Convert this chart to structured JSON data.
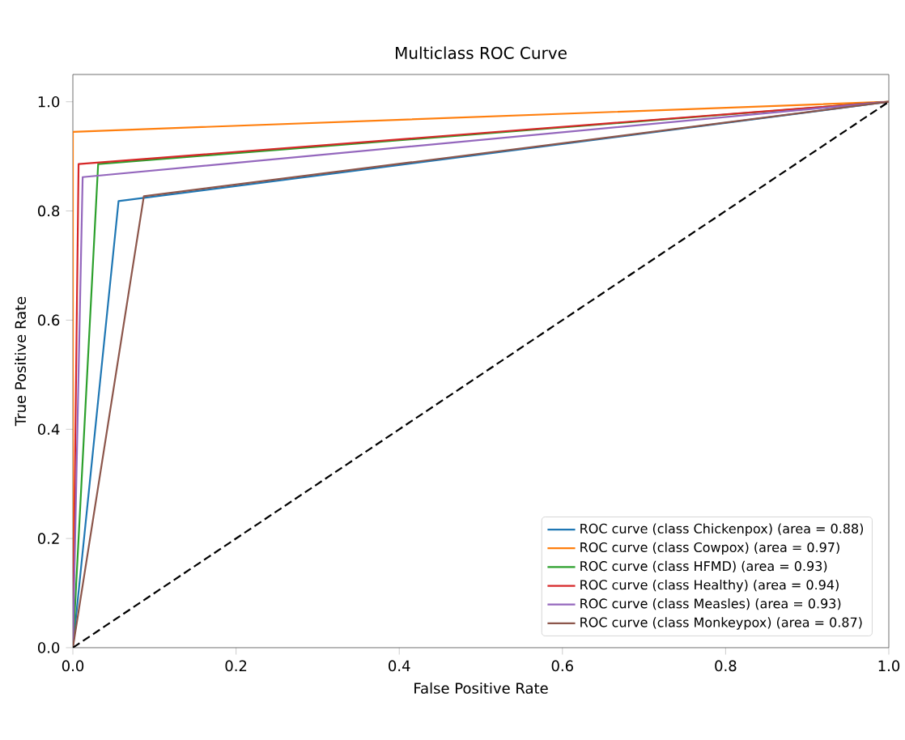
{
  "chart_data": {
    "type": "line",
    "title": "Multiclass ROC Curve",
    "xlabel": "False Positive Rate",
    "ylabel": "True Positive Rate",
    "xlim": [
      0,
      1
    ],
    "ylim": [
      0,
      1.05
    ],
    "xticks": [
      {
        "value": 0,
        "label": "0.0"
      },
      {
        "value": 0.2,
        "label": "0.2"
      },
      {
        "value": 0.4,
        "label": "0.4"
      },
      {
        "value": 0.6,
        "label": "0.6"
      },
      {
        "value": 0.8,
        "label": "0.8"
      },
      {
        "value": 1,
        "label": "1.0"
      }
    ],
    "yticks": [
      {
        "value": 0,
        "label": "0.0"
      },
      {
        "value": 0.2,
        "label": "0.2"
      },
      {
        "value": 0.4,
        "label": "0.4"
      },
      {
        "value": 0.6,
        "label": "0.6"
      },
      {
        "value": 0.8,
        "label": "0.8"
      },
      {
        "value": 1,
        "label": "1.0"
      }
    ],
    "legend": "bottom right",
    "grid": false,
    "marker": "none",
    "series": [
      {
        "name": "ROC curve (class Chickenpox) (area = 0.88)",
        "color": "#1f77b4",
        "x": [
          0,
          0.056,
          1
        ],
        "values": [
          0,
          0.818,
          1
        ]
      },
      {
        "name": "ROC curve (class Cowpox) (area = 0.97)",
        "color": "#ff7f0e",
        "x": [
          0,
          0,
          1
        ],
        "values": [
          0,
          0.945,
          1
        ]
      },
      {
        "name": "ROC curve (class HFMD) (area = 0.93)",
        "color": "#2ca02c",
        "x": [
          0,
          0.031,
          1
        ],
        "values": [
          0,
          0.886,
          1
        ]
      },
      {
        "name": "ROC curve (class Healthy) (area = 0.94)",
        "color": "#d62728",
        "x": [
          0,
          0.007,
          1
        ],
        "values": [
          0,
          0.886,
          1
        ]
      },
      {
        "name": "ROC curve (class Measles) (area = 0.93)",
        "color": "#9467bd",
        "x": [
          0,
          0.012,
          1
        ],
        "values": [
          0,
          0.862,
          1
        ]
      },
      {
        "name": "ROC curve (class Monkeypox) (area = 0.87)",
        "color": "#8c564b",
        "x": [
          0,
          0.087,
          1
        ],
        "values": [
          0,
          0.827,
          1
        ]
      },
      {
        "color": "#000000",
        "line_style": "dashed",
        "x": [
          0,
          1
        ],
        "values": [
          0,
          1
        ]
      }
    ]
  }
}
